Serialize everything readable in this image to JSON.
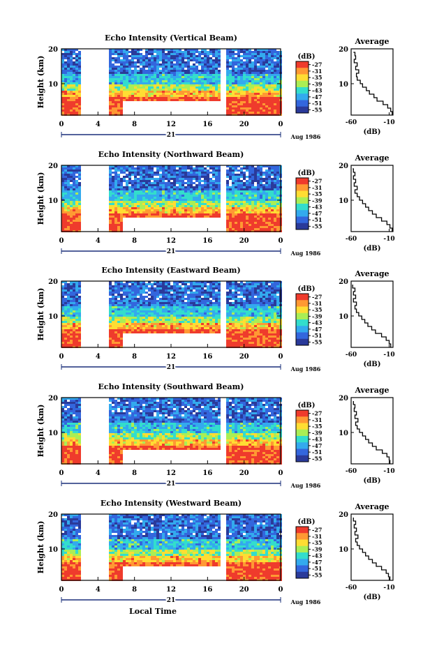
{
  "chart_data": [
    {
      "type": "heatmap",
      "title": "Echo Intensity (Vertical Beam)",
      "xlabel": "",
      "ylabel": "Height (km)",
      "xticks": [
        "0",
        "4",
        "8",
        "12",
        "16",
        "20",
        "0"
      ],
      "yticks": [
        "10",
        "20"
      ],
      "date_label": "21",
      "month_label": "Aug 1986",
      "xlim": [
        0,
        24
      ],
      "ylim": [
        1,
        20
      ],
      "colorbar": {
        "label": "(dB)",
        "ticks": [
          "-27",
          "-31",
          "-35",
          "-39",
          "-43",
          "-47",
          "-51",
          "-55"
        ]
      },
      "data_gaps_hours": [
        [
          2.1,
          5.3
        ],
        [
          17.3,
          18.0
        ]
      ],
      "profile": {
        "type": "line",
        "title": "Average",
        "xlabel": "(dB)",
        "ylabel": "",
        "xticks": [
          "-60",
          "-10"
        ],
        "yticks": [
          "10",
          "20"
        ],
        "xlim": [
          -60,
          -5
        ],
        "ylim": [
          1,
          20
        ],
        "x": [
          -6,
          -8,
          -12,
          -18,
          -26,
          -30,
          -36,
          -40,
          -45,
          -48,
          -52,
          -53,
          -50,
          -54,
          -52,
          -56,
          -54,
          -55,
          -57
        ],
        "y": [
          1,
          2,
          3,
          4,
          5,
          6,
          7,
          8,
          9,
          10,
          11,
          12,
          13,
          14,
          15,
          16,
          17,
          18,
          19
        ]
      }
    },
    {
      "type": "heatmap",
      "title": "Echo Intensity (Northward Beam)",
      "xlabel": "",
      "ylabel": "Height (km)",
      "xticks": [
        "0",
        "4",
        "8",
        "12",
        "16",
        "20",
        "0"
      ],
      "yticks": [
        "10",
        "20"
      ],
      "date_label": "21",
      "month_label": "Aug 1986",
      "xlim": [
        0,
        24
      ],
      "ylim": [
        1,
        20
      ],
      "colorbar": {
        "label": "(dB)",
        "ticks": [
          "-27",
          "-31",
          "-35",
          "-39",
          "-43",
          "-47",
          "-51",
          "-55"
        ]
      },
      "data_gaps_hours": [
        [
          2.1,
          5.3
        ],
        [
          17.3,
          18.0
        ]
      ],
      "profile": {
        "type": "line",
        "title": "Average",
        "xlabel": "(dB)",
        "ylabel": "",
        "xticks": [
          "-60",
          "-10"
        ],
        "yticks": [
          "10",
          "20"
        ],
        "xlim": [
          -60,
          -5
        ],
        "ylim": [
          1,
          20
        ],
        "x": [
          -6,
          -9,
          -13,
          -20,
          -27,
          -32,
          -37,
          -41,
          -45,
          -49,
          -52,
          -55,
          -52,
          -56,
          -54,
          -57,
          -55,
          -57,
          -58
        ],
        "y": [
          1,
          2,
          3,
          4,
          5,
          6,
          7,
          8,
          9,
          10,
          11,
          12,
          13,
          14,
          15,
          16,
          17,
          18,
          19
        ]
      }
    },
    {
      "type": "heatmap",
      "title": "Echo Intensity (Eastward Beam)",
      "xlabel": "",
      "ylabel": "Height (km)",
      "xticks": [
        "0",
        "4",
        "8",
        "12",
        "16",
        "20",
        "0"
      ],
      "yticks": [
        "10",
        "20"
      ],
      "date_label": "21",
      "month_label": "Aug 1986",
      "xlim": [
        0,
        24
      ],
      "ylim": [
        1,
        20
      ],
      "colorbar": {
        "label": "(dB)",
        "ticks": [
          "-27",
          "-31",
          "-35",
          "-39",
          "-43",
          "-47",
          "-51",
          "-55"
        ]
      },
      "data_gaps_hours": [
        [
          2.1,
          5.3
        ],
        [
          17.3,
          18.0
        ]
      ],
      "profile": {
        "type": "line",
        "title": "Average",
        "xlabel": "(dB)",
        "ylabel": "",
        "xticks": [
          "-60",
          "-10"
        ],
        "yticks": [
          "10",
          "20"
        ],
        "xlim": [
          -60,
          -5
        ],
        "ylim": [
          1,
          20
        ],
        "x": [
          -8,
          -10,
          -14,
          -20,
          -28,
          -33,
          -38,
          -42,
          -46,
          -50,
          -53,
          -55,
          -53,
          -57,
          -54,
          -57,
          -55,
          -58,
          -58
        ],
        "y": [
          1,
          2,
          3,
          4,
          5,
          6,
          7,
          8,
          9,
          10,
          11,
          12,
          13,
          14,
          15,
          16,
          17,
          18,
          19
        ]
      }
    },
    {
      "type": "heatmap",
      "title": "Echo Intensity (Southward Beam)",
      "xlabel": "",
      "ylabel": "Height (km)",
      "xticks": [
        "0",
        "4",
        "8",
        "12",
        "16",
        "20",
        "0"
      ],
      "yticks": [
        "10",
        "20"
      ],
      "date_label": "21",
      "month_label": "Aug 1986",
      "xlim": [
        0,
        24
      ],
      "ylim": [
        1,
        20
      ],
      "colorbar": {
        "label": "(dB)",
        "ticks": [
          "-27",
          "-31",
          "-35",
          "-39",
          "-43",
          "-47",
          "-51",
          "-55"
        ]
      },
      "data_gaps_hours": [
        [
          2.1,
          5.3
        ],
        [
          17.3,
          18.0
        ]
      ],
      "profile": {
        "type": "line",
        "title": "Average",
        "xlabel": "(dB)",
        "ylabel": "",
        "xticks": [
          "-60",
          "-10"
        ],
        "yticks": [
          "10",
          "20"
        ],
        "xlim": [
          -60,
          -5
        ],
        "ylim": [
          1,
          20
        ],
        "x": [
          -9,
          -10,
          -13,
          -19,
          -27,
          -32,
          -37,
          -41,
          -45,
          -49,
          -52,
          -54,
          -51,
          -55,
          -53,
          -56,
          -55,
          -57,
          -57
        ],
        "y": [
          1,
          2,
          3,
          4,
          5,
          6,
          7,
          8,
          9,
          10,
          11,
          12,
          13,
          14,
          15,
          16,
          17,
          18,
          19
        ]
      }
    },
    {
      "type": "heatmap",
      "title": "Echo Intensity (Westward Beam)",
      "xlabel": "Local Time",
      "ylabel": "Height (km)",
      "xticks": [
        "0",
        "4",
        "8",
        "12",
        "16",
        "20",
        "0"
      ],
      "yticks": [
        "10",
        "20"
      ],
      "date_label": "21",
      "month_label": "Aug 1986",
      "xlim": [
        0,
        24
      ],
      "ylim": [
        1,
        20
      ],
      "colorbar": {
        "label": "(dB)",
        "ticks": [
          "-27",
          "-31",
          "-35",
          "-39",
          "-43",
          "-47",
          "-51",
          "-55"
        ]
      },
      "data_gaps_hours": [
        [
          2.1,
          5.3
        ],
        [
          17.3,
          18.0
        ]
      ],
      "profile": {
        "type": "line",
        "title": "Average",
        "xlabel": "(dB)",
        "ylabel": "",
        "xticks": [
          "-60",
          "-10"
        ],
        "yticks": [
          "10",
          "20"
        ],
        "xlim": [
          -60,
          -5
        ],
        "ylim": [
          1,
          20
        ],
        "x": [
          -9,
          -11,
          -14,
          -20,
          -27,
          -32,
          -37,
          -41,
          -45,
          -49,
          -52,
          -54,
          -51,
          -55,
          -53,
          -56,
          -54,
          -57,
          -57
        ],
        "y": [
          1,
          2,
          3,
          4,
          5,
          6,
          7,
          8,
          9,
          10,
          11,
          12,
          13,
          14,
          15,
          16,
          17,
          18,
          19
        ]
      }
    }
  ],
  "colors": {
    "scale": [
      "#ef3b2c",
      "#ff9933",
      "#ffdd33",
      "#aaee55",
      "#33ddcc",
      "#33aaee",
      "#3366dd",
      "#2a3a9a"
    ],
    "background": "#ffffff"
  }
}
